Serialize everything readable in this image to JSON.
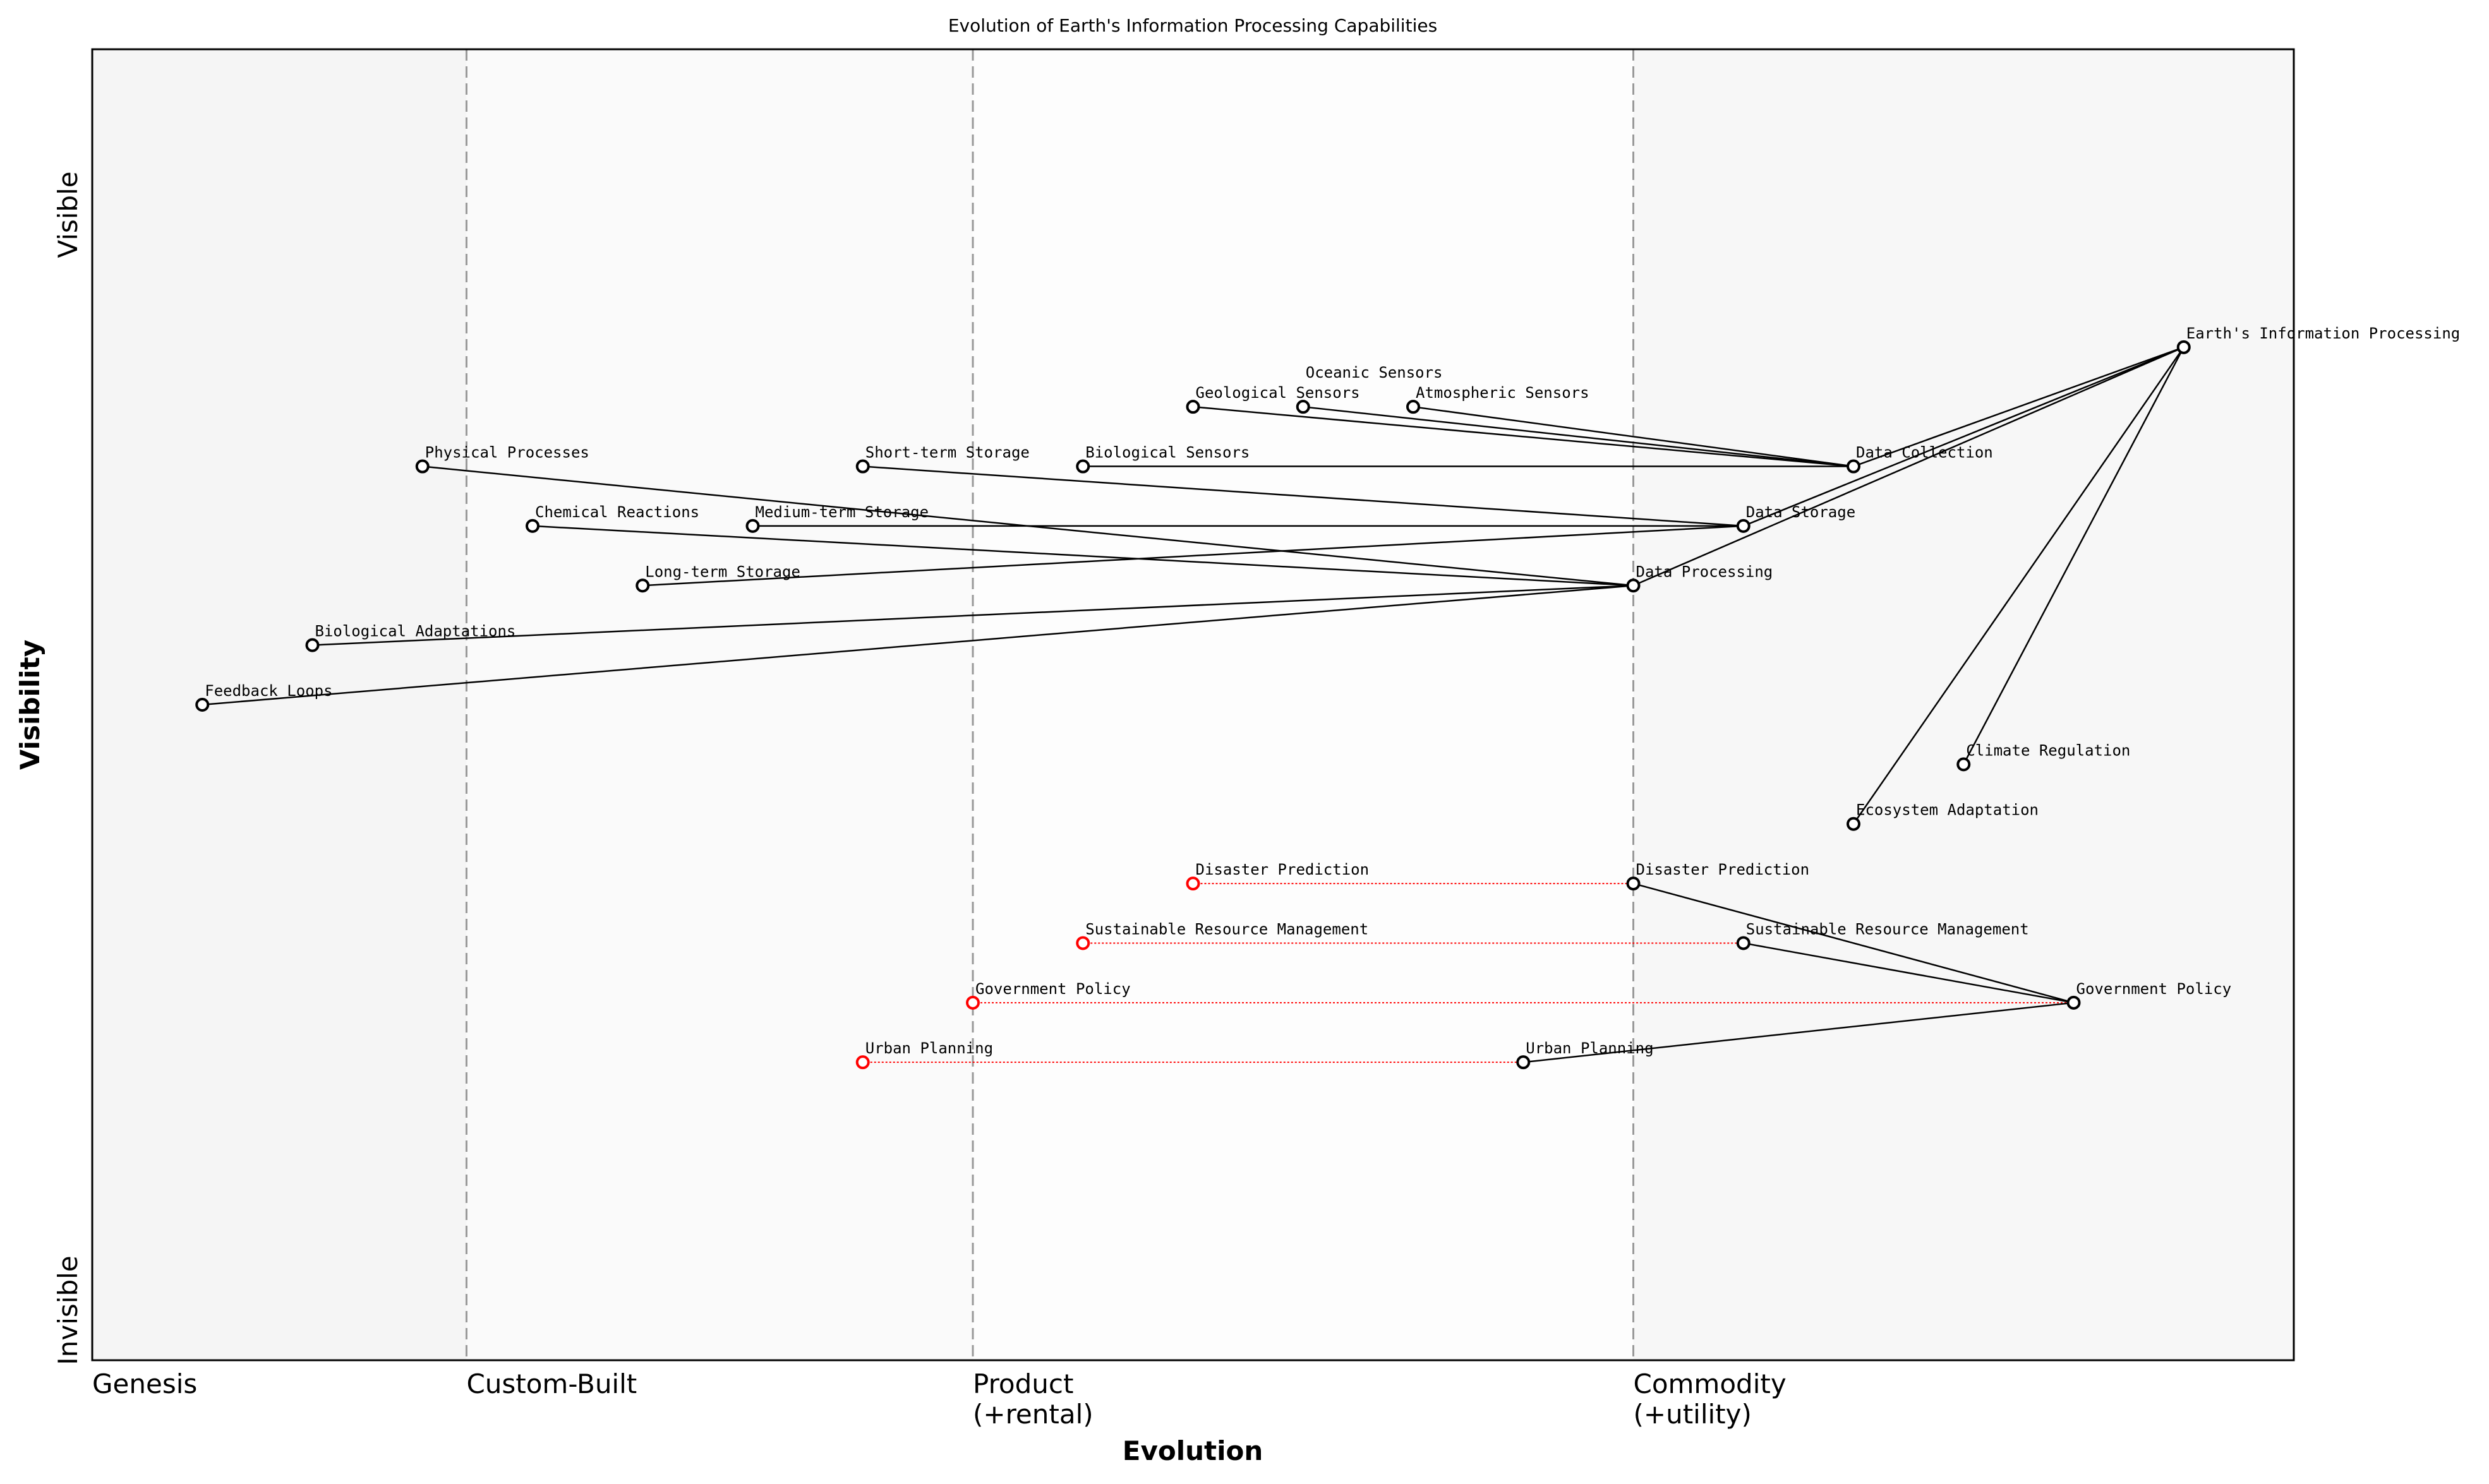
{
  "chart_data": {
    "type": "scatter",
    "subtype": "wardley-map",
    "title": "Evolution of Earth's Information Processing Capabilities",
    "xlabel": "Evolution",
    "ylabel": "Visibility",
    "xlim": [
      0,
      1
    ],
    "ylim": [
      0,
      1.1
    ],
    "grid": false,
    "legend": "none",
    "stages": [
      {
        "label": "Genesis",
        "x": 0
      },
      {
        "label": "Custom-Built",
        "x": 0.17
      },
      {
        "label": "Product\n(+rental)",
        "x": 0.4
      },
      {
        "label": "Commodity\n(+utility)",
        "x": 0.7
      }
    ],
    "y_labels": {
      "top": "Visible",
      "bottom": "Invisible"
    },
    "colors": {
      "node": "#000000",
      "evolution_origin": "#ff0000",
      "link": "#000000",
      "evolution_link": "#ff0000",
      "stage_line": "#999999"
    },
    "components": [
      {
        "name": "Earth's Information Processing",
        "evolution": 0.95,
        "visibility": 0.85
      },
      {
        "name": "Data Collection",
        "evolution": 0.8,
        "visibility": 0.75
      },
      {
        "name": "Data Storage",
        "evolution": 0.75,
        "visibility": 0.7
      },
      {
        "name": "Data Processing",
        "evolution": 0.7,
        "visibility": 0.65
      },
      {
        "name": "Geological Sensors",
        "evolution": 0.5,
        "visibility": 0.8
      },
      {
        "name": "Oceanic Sensors",
        "evolution": 0.55,
        "visibility": 0.8
      },
      {
        "name": "Atmospheric Sensors",
        "evolution": 0.6,
        "visibility": 0.8
      },
      {
        "name": "Biological Sensors",
        "evolution": 0.45,
        "visibility": 0.75
      },
      {
        "name": "Short-term Storage",
        "evolution": 0.35,
        "visibility": 0.75
      },
      {
        "name": "Medium-term Storage",
        "evolution": 0.3,
        "visibility": 0.7
      },
      {
        "name": "Long-term Storage",
        "evolution": 0.25,
        "visibility": 0.65
      },
      {
        "name": "Physical Processes",
        "evolution": 0.15,
        "visibility": 0.75
      },
      {
        "name": "Chemical Reactions",
        "evolution": 0.2,
        "visibility": 0.7
      },
      {
        "name": "Biological Adaptations",
        "evolution": 0.1,
        "visibility": 0.6
      },
      {
        "name": "Feedback Loops",
        "evolution": 0.05,
        "visibility": 0.55
      },
      {
        "name": "Climate Regulation",
        "evolution": 0.85,
        "visibility": 0.5
      },
      {
        "name": "Ecosystem Adaptation",
        "evolution": 0.8,
        "visibility": 0.45
      },
      {
        "name": "Disaster Prediction",
        "evolution": 0.7,
        "visibility": 0.4
      },
      {
        "name": "Sustainable Resource Management",
        "evolution": 0.75,
        "visibility": 0.35
      },
      {
        "name": "Government Policy",
        "evolution": 0.9,
        "visibility": 0.3
      },
      {
        "name": "Urban Planning",
        "evolution": 0.65,
        "visibility": 0.25
      }
    ],
    "evolution_origins": [
      {
        "name": "Disaster Prediction",
        "evolution": 0.5,
        "visibility": 0.4,
        "evolves_to": 0.7
      },
      {
        "name": "Sustainable Resource Management",
        "evolution": 0.45,
        "visibility": 0.35,
        "evolves_to": 0.75
      },
      {
        "name": "Government Policy",
        "evolution": 0.4,
        "visibility": 0.3,
        "evolves_to": 0.9
      },
      {
        "name": "Urban Planning",
        "evolution": 0.35,
        "visibility": 0.25,
        "evolves_to": 0.65
      }
    ],
    "links": [
      [
        "Earth's Information Processing",
        "Data Collection"
      ],
      [
        "Earth's Information Processing",
        "Data Storage"
      ],
      [
        "Earth's Information Processing",
        "Data Processing"
      ],
      [
        "Earth's Information Processing",
        "Climate Regulation"
      ],
      [
        "Earth's Information Processing",
        "Ecosystem Adaptation"
      ],
      [
        "Data Collection",
        "Geological Sensors"
      ],
      [
        "Data Collection",
        "Oceanic Sensors"
      ],
      [
        "Data Collection",
        "Atmospheric Sensors"
      ],
      [
        "Data Collection",
        "Biological Sensors"
      ],
      [
        "Data Storage",
        "Short-term Storage"
      ],
      [
        "Data Storage",
        "Medium-term Storage"
      ],
      [
        "Data Storage",
        "Long-term Storage"
      ],
      [
        "Data Processing",
        "Physical Processes"
      ],
      [
        "Data Processing",
        "Chemical Reactions"
      ],
      [
        "Data Processing",
        "Biological Adaptations"
      ],
      [
        "Data Processing",
        "Feedback Loops"
      ],
      [
        "Government Policy",
        "Disaster Prediction"
      ],
      [
        "Government Policy",
        "Sustainable Resource Management"
      ],
      [
        "Government Policy",
        "Urban Planning"
      ]
    ]
  }
}
